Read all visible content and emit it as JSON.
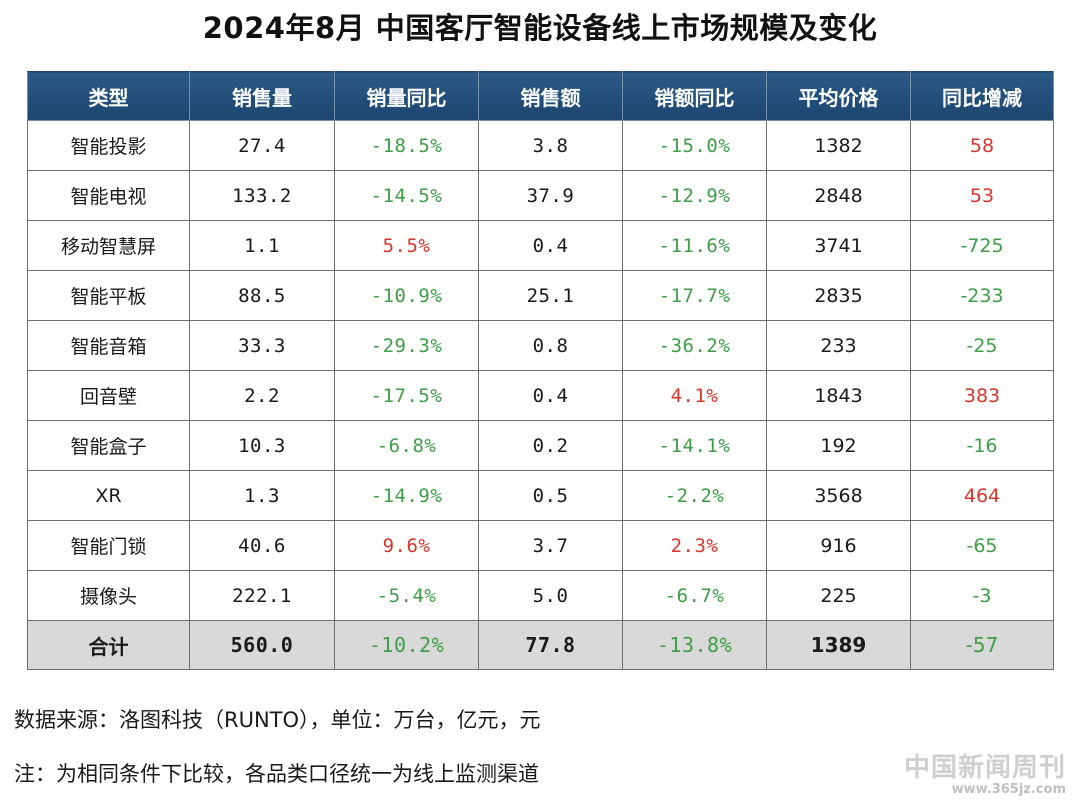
{
  "title": "2024年8月 中国客厅智能设备线上市场规模及变化",
  "colors": {
    "header_bg": "#1f4e79",
    "negative": "#3e9e48",
    "positive": "#d6352b",
    "total_bg": "#d9d9d9"
  },
  "table": {
    "headers": [
      "类型",
      "销售量",
      "销量同比",
      "销售额",
      "销额同比",
      "平均价格",
      "同比增减"
    ],
    "rows": [
      [
        "智能投影",
        "27.4",
        "-18.5%",
        "3.8",
        "-15.0%",
        "1382",
        "58"
      ],
      [
        "智能电视",
        "133.2",
        "-14.5%",
        "37.9",
        "-12.9%",
        "2848",
        "53"
      ],
      [
        "移动智慧屏",
        "1.1",
        "5.5%",
        "0.4",
        "-11.6%",
        "3741",
        "-725"
      ],
      [
        "智能平板",
        "88.5",
        "-10.9%",
        "25.1",
        "-17.7%",
        "2835",
        "-233"
      ],
      [
        "智能音箱",
        "33.3",
        "-29.3%",
        "0.8",
        "-36.2%",
        "233",
        "-25"
      ],
      [
        "回音壁",
        "2.2",
        "-17.5%",
        "0.4",
        "4.1%",
        "1843",
        "383"
      ],
      [
        "智能盒子",
        "10.3",
        "-6.8%",
        "0.2",
        "-14.1%",
        "192",
        "-16"
      ],
      [
        "XR",
        "1.3",
        "-14.9%",
        "0.5",
        "-2.2%",
        "3568",
        "464"
      ],
      [
        "智能门锁",
        "40.6",
        "9.6%",
        "3.7",
        "2.3%",
        "916",
        "-65"
      ],
      [
        "摄像头",
        "222.1",
        "-5.4%",
        "5.0",
        "-6.7%",
        "225",
        "-3"
      ]
    ],
    "total": [
      "合计",
      "560.0",
      "-10.2%",
      "77.8",
      "-13.8%",
      "1389",
      "-57"
    ]
  },
  "source_note": "数据来源：洛图科技（RUNTO），单位：万台，亿元，元",
  "remark_note": "注：为相同条件下比较，各品类口径统一为线上监测渠道",
  "watermark": {
    "text": "中国新闻周刊",
    "site": "www.365jz.com"
  }
}
